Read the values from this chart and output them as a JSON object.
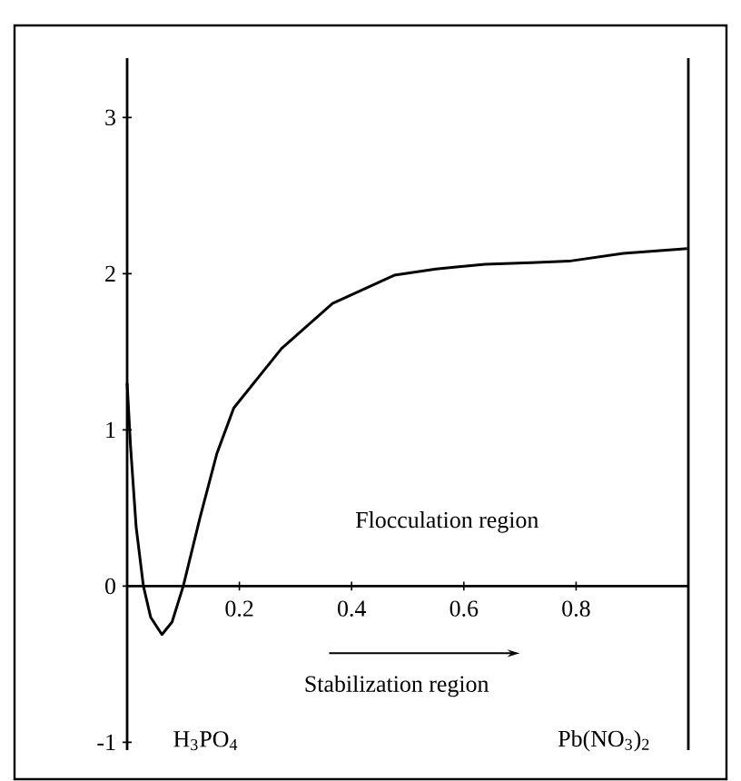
{
  "chart_data": {
    "type": "line",
    "x": [
      0,
      0.006,
      0.016,
      0.029,
      0.042,
      0.062,
      0.08,
      0.1,
      0.13,
      0.16,
      0.19,
      0.275,
      0.366,
      0.476,
      0.55,
      0.638,
      0.72,
      0.787,
      0.884,
      0.998
    ],
    "series": [
      {
        "color": "#000000",
        "values": [
          1.3,
          0.9,
          0.38,
          0,
          -0.2,
          -0.31,
          -0.23,
          0,
          0.44,
          0.85,
          1.14,
          1.52,
          1.81,
          1.99,
          2.03,
          2.06,
          2.07,
          2.08,
          2.13,
          2.16
        ]
      }
    ],
    "xlim": [
      0,
      1
    ],
    "ylim": [
      -1.05,
      3.38
    ],
    "xticks": [
      0.2,
      0.4,
      0.6,
      0.8
    ],
    "yticks": [
      -1,
      0,
      1,
      2,
      3
    ],
    "ref_lines": [
      {
        "axis": "x",
        "value": 1,
        "color": "#000000"
      }
    ],
    "marker": "none",
    "line_style": "solid",
    "annotations": [
      "Flocculation region",
      "Stabilization region",
      "H$_{3}$PO$_{4}$",
      "Pb(NO$_{3}$)$_{2}$"
    ]
  }
}
